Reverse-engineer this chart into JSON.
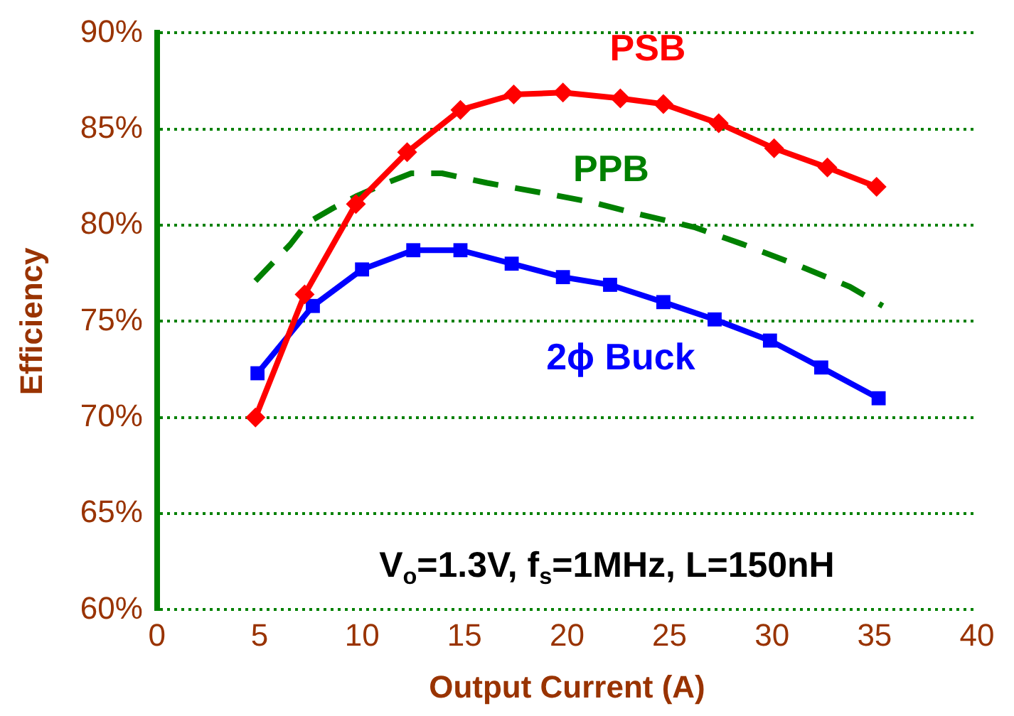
{
  "chart_data": {
    "type": "line",
    "xlabel": "Output Current (A)",
    "ylabel": "Efficiency",
    "xlim": [
      0,
      40
    ],
    "xticks": [
      0,
      5,
      10,
      15,
      20,
      25,
      30,
      35,
      40
    ],
    "ylim": [
      60,
      90
    ],
    "yticks": [
      {
        "value": 60,
        "label": "60%"
      },
      {
        "value": 65,
        "label": "65%"
      },
      {
        "value": 70,
        "label": "70%"
      },
      {
        "value": 75,
        "label": "75%"
      },
      {
        "value": 80,
        "label": "80%"
      },
      {
        "value": 85,
        "label": "85%"
      },
      {
        "value": 90,
        "label": "90%"
      }
    ],
    "grid": "y",
    "legend": false,
    "series": [
      {
        "name": "PSB",
        "color": "#ff0000",
        "marker": "diamond",
        "line_style": "solid",
        "x": [
          4.8,
          7.2,
          9.7,
          12.2,
          14.8,
          17.4,
          19.8,
          22.6,
          24.7,
          27.4,
          30.1,
          32.7,
          35.1
        ],
        "values": [
          70.0,
          76.4,
          81.1,
          83.8,
          86.0,
          86.8,
          86.9,
          86.6,
          86.3,
          85.3,
          84.0,
          83.0,
          82.0
        ]
      },
      {
        "name": "PPB",
        "color": "#008000",
        "marker": "none",
        "line_style": "dashed",
        "x": [
          4.8,
          6.5,
          7.3,
          8.6,
          9.7,
          11.2,
          12.4,
          13.9,
          16.1,
          18.7,
          21.2,
          23.4,
          26.2,
          28.6,
          31.3,
          33.8,
          35.4
        ],
        "values": [
          77.1,
          79.0,
          80.1,
          80.9,
          81.5,
          82.2,
          82.7,
          82.7,
          82.2,
          81.7,
          81.2,
          80.6,
          79.9,
          79.0,
          77.9,
          76.8,
          75.8
        ]
      },
      {
        "name": "2ϕ Buck",
        "color": "#0000ff",
        "marker": "square",
        "line_style": "solid",
        "x": [
          4.9,
          7.6,
          10.0,
          12.5,
          14.8,
          17.3,
          19.8,
          22.1,
          24.7,
          27.2,
          29.9,
          32.4,
          35.2
        ],
        "values": [
          72.3,
          75.8,
          77.7,
          78.7,
          78.7,
          78.0,
          77.3,
          76.9,
          76.0,
          75.1,
          74.0,
          72.6,
          71.0
        ]
      }
    ],
    "annotations": [
      "V$_{o}$=1.3V, f$_{s}$=1MHz, L=150nH"
    ]
  }
}
